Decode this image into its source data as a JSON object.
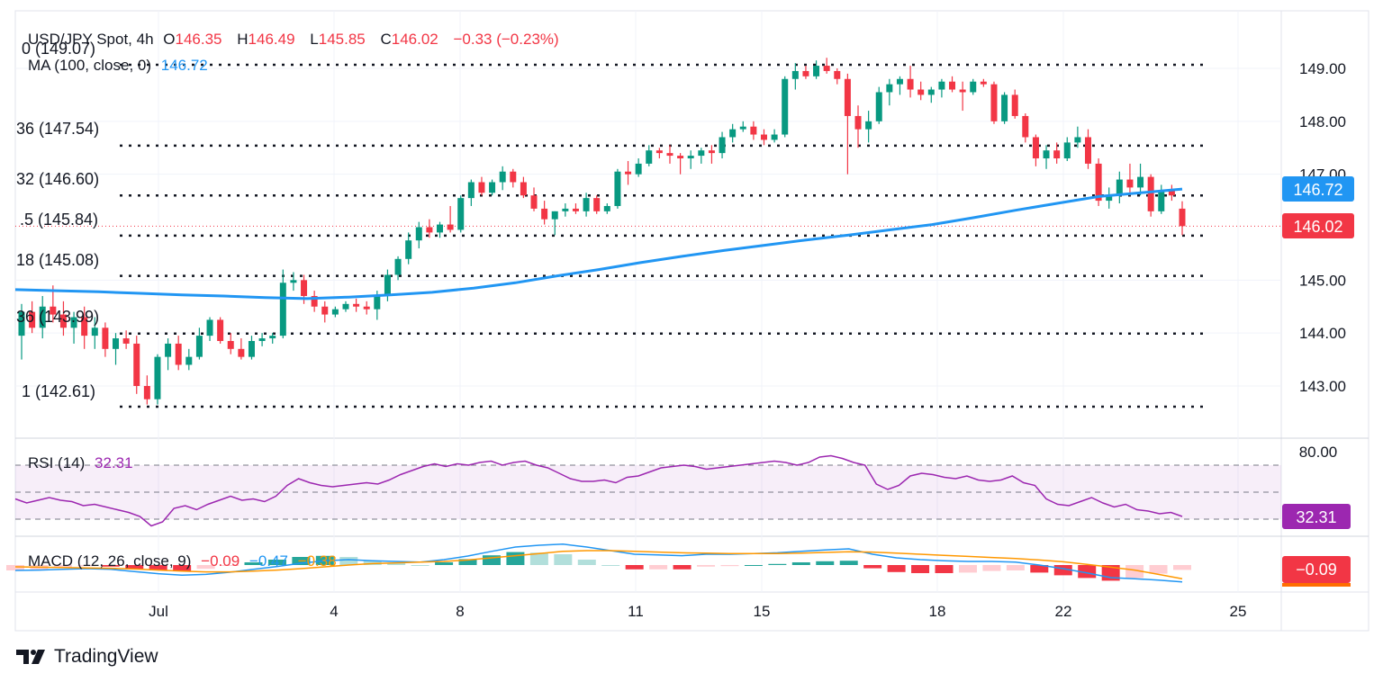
{
  "legend": {
    "symbol": "USD/JPY Spot, 4h",
    "o_label": "O",
    "o_value": "146.35",
    "h_label": "H",
    "h_value": "146.49",
    "l_label": "L",
    "l_value": "145.85",
    "c_label": "C",
    "c_value": "146.02",
    "change": "−0.33 (−0.23%)",
    "ma_label": "MA (100, close, 0)",
    "ma_value": "146.72",
    "rsi_label": "RSI (14)",
    "rsi_value": "32.31",
    "macd_label": "MACD (12, 26, close, 9)",
    "macd_hist": "−0.09",
    "macd_line": "−0.47",
    "macd_signal": "−0.38"
  },
  "fib_labels": [
    {
      "text": "0 (149.07)",
      "price": 149.07
    },
    {
      "text": "36 (147.54)",
      "price": 147.54
    },
    {
      "text": "32 (146.60)",
      "price": 146.6
    },
    {
      "text": ".5 (145.84)",
      "price": 145.84
    },
    {
      "text": "18 (145.08)",
      "price": 145.08
    },
    {
      "text": "36 (143.99)",
      "price": 143.99
    },
    {
      "text": "1 (142.61)",
      "price": 142.61
    }
  ],
  "price_badges": {
    "ma": "146.72",
    "last": "146.02",
    "rsi": "32.31",
    "macd": "−0.09"
  },
  "brand": "TradingView",
  "colors": {
    "up": "#089981",
    "down": "#f23645",
    "ma": "#2196f3",
    "rsi": "#9c27b0",
    "macd_signal": "#ff9800",
    "macd_line": "#2196f3"
  },
  "chart_data": [
    {
      "type": "candlestick",
      "title": "USD/JPY Spot, 4h",
      "yaxis_ticks": [
        "149.00",
        "148.00",
        "147.00",
        "145.00",
        "144.00",
        "143.00"
      ],
      "xaxis_ticks": [
        "Jul",
        "4",
        "8",
        "11",
        "15",
        "18",
        "22",
        "25"
      ],
      "ylim": [
        142.25,
        149.4
      ],
      "fib_levels": [
        149.07,
        147.54,
        146.6,
        145.84,
        145.08,
        143.99,
        142.61
      ],
      "candles": [
        {
          "o": 143.95,
          "h": 144.55,
          "l": 143.5,
          "c": 144.4
        },
        {
          "o": 144.4,
          "h": 144.6,
          "l": 144.0,
          "c": 144.1
        },
        {
          "o": 144.1,
          "h": 144.7,
          "l": 143.9,
          "c": 144.5
        },
        {
          "o": 144.5,
          "h": 144.9,
          "l": 144.2,
          "c": 144.35
        },
        {
          "o": 144.35,
          "h": 144.6,
          "l": 143.95,
          "c": 144.1
        },
        {
          "o": 144.1,
          "h": 144.4,
          "l": 143.8,
          "c": 144.3
        },
        {
          "o": 144.3,
          "h": 144.5,
          "l": 143.7,
          "c": 143.95
        },
        {
          "o": 143.95,
          "h": 144.3,
          "l": 143.7,
          "c": 144.1
        },
        {
          "o": 144.1,
          "h": 144.2,
          "l": 143.55,
          "c": 143.7
        },
        {
          "o": 143.7,
          "h": 144.0,
          "l": 143.4,
          "c": 143.9
        },
        {
          "o": 143.9,
          "h": 144.05,
          "l": 143.7,
          "c": 143.8
        },
        {
          "o": 143.8,
          "h": 143.95,
          "l": 142.85,
          "c": 143.0
        },
        {
          "o": 143.0,
          "h": 143.2,
          "l": 142.65,
          "c": 142.75
        },
        {
          "o": 142.75,
          "h": 143.6,
          "l": 142.65,
          "c": 143.55
        },
        {
          "o": 143.55,
          "h": 143.9,
          "l": 143.3,
          "c": 143.8
        },
        {
          "o": 143.8,
          "h": 143.95,
          "l": 143.3,
          "c": 143.4
        },
        {
          "o": 143.4,
          "h": 143.7,
          "l": 143.3,
          "c": 143.55
        },
        {
          "o": 143.55,
          "h": 144.1,
          "l": 143.5,
          "c": 143.95
        },
        {
          "o": 143.95,
          "h": 144.3,
          "l": 143.85,
          "c": 144.25
        },
        {
          "o": 144.25,
          "h": 144.3,
          "l": 143.8,
          "c": 143.85
        },
        {
          "o": 143.85,
          "h": 144.0,
          "l": 143.6,
          "c": 143.7
        },
        {
          "o": 143.7,
          "h": 143.9,
          "l": 143.5,
          "c": 143.55
        },
        {
          "o": 143.55,
          "h": 143.95,
          "l": 143.5,
          "c": 143.85
        },
        {
          "o": 143.85,
          "h": 144.0,
          "l": 143.75,
          "c": 143.9
        },
        {
          "o": 143.9,
          "h": 144.0,
          "l": 143.8,
          "c": 143.95
        },
        {
          "o": 143.95,
          "h": 145.2,
          "l": 143.9,
          "c": 144.95
        },
        {
          "o": 144.95,
          "h": 145.15,
          "l": 144.8,
          "c": 145.0
        },
        {
          "o": 145.0,
          "h": 145.1,
          "l": 144.55,
          "c": 144.7
        },
        {
          "o": 144.7,
          "h": 144.8,
          "l": 144.4,
          "c": 144.5
        },
        {
          "o": 144.5,
          "h": 144.6,
          "l": 144.2,
          "c": 144.35
        },
        {
          "o": 144.35,
          "h": 144.5,
          "l": 144.3,
          "c": 144.45
        },
        {
          "o": 144.45,
          "h": 144.6,
          "l": 144.4,
          "c": 144.55
        },
        {
          "o": 144.55,
          "h": 144.65,
          "l": 144.4,
          "c": 144.5
        },
        {
          "o": 144.5,
          "h": 144.6,
          "l": 144.35,
          "c": 144.45
        },
        {
          "o": 144.45,
          "h": 144.8,
          "l": 144.25,
          "c": 144.7
        },
        {
          "o": 144.7,
          "h": 145.2,
          "l": 144.6,
          "c": 145.1
        },
        {
          "o": 145.1,
          "h": 145.45,
          "l": 145.0,
          "c": 145.4
        },
        {
          "o": 145.4,
          "h": 145.9,
          "l": 145.3,
          "c": 145.75
        },
        {
          "o": 145.75,
          "h": 146.1,
          "l": 145.6,
          "c": 146.0
        },
        {
          "o": 146.0,
          "h": 146.15,
          "l": 145.8,
          "c": 145.9
        },
        {
          "o": 145.9,
          "h": 146.1,
          "l": 145.8,
          "c": 146.05
        },
        {
          "o": 146.05,
          "h": 146.4,
          "l": 145.9,
          "c": 145.95
        },
        {
          "o": 145.95,
          "h": 146.6,
          "l": 145.9,
          "c": 146.55
        },
        {
          "o": 146.55,
          "h": 146.9,
          "l": 146.4,
          "c": 146.85
        },
        {
          "o": 146.85,
          "h": 146.95,
          "l": 146.6,
          "c": 146.65
        },
        {
          "o": 146.65,
          "h": 146.9,
          "l": 146.6,
          "c": 146.85
        },
        {
          "o": 146.85,
          "h": 147.15,
          "l": 146.7,
          "c": 147.05
        },
        {
          "o": 147.05,
          "h": 147.1,
          "l": 146.75,
          "c": 146.85
        },
        {
          "o": 146.85,
          "h": 146.95,
          "l": 146.55,
          "c": 146.6
        },
        {
          "o": 146.6,
          "h": 146.75,
          "l": 146.3,
          "c": 146.35
        },
        {
          "o": 146.35,
          "h": 146.5,
          "l": 146.05,
          "c": 146.15
        },
        {
          "o": 146.15,
          "h": 146.3,
          "l": 145.85,
          "c": 146.3
        },
        {
          "o": 146.3,
          "h": 146.45,
          "l": 146.2,
          "c": 146.35
        },
        {
          "o": 146.35,
          "h": 146.45,
          "l": 146.25,
          "c": 146.3
        },
        {
          "o": 146.3,
          "h": 146.65,
          "l": 146.2,
          "c": 146.55
        },
        {
          "o": 146.55,
          "h": 146.6,
          "l": 146.25,
          "c": 146.3
        },
        {
          "o": 146.3,
          "h": 146.45,
          "l": 146.25,
          "c": 146.4
        },
        {
          "o": 146.4,
          "h": 147.1,
          "l": 146.35,
          "c": 147.05
        },
        {
          "o": 147.05,
          "h": 147.25,
          "l": 146.8,
          "c": 147.0
        },
        {
          "o": 147.0,
          "h": 147.3,
          "l": 146.95,
          "c": 147.2
        },
        {
          "o": 147.2,
          "h": 147.55,
          "l": 147.15,
          "c": 147.45
        },
        {
          "o": 147.45,
          "h": 147.5,
          "l": 147.3,
          "c": 147.4
        },
        {
          "o": 147.4,
          "h": 147.55,
          "l": 147.2,
          "c": 147.35
        },
        {
          "o": 147.35,
          "h": 147.4,
          "l": 147.0,
          "c": 147.3
        },
        {
          "o": 147.3,
          "h": 147.45,
          "l": 147.1,
          "c": 147.35
        },
        {
          "o": 147.35,
          "h": 147.5,
          "l": 147.2,
          "c": 147.45
        },
        {
          "o": 147.45,
          "h": 147.55,
          "l": 147.2,
          "c": 147.4
        },
        {
          "o": 147.4,
          "h": 147.8,
          "l": 147.3,
          "c": 147.7
        },
        {
          "o": 147.7,
          "h": 147.95,
          "l": 147.6,
          "c": 147.85
        },
        {
          "o": 147.85,
          "h": 148.0,
          "l": 147.8,
          "c": 147.9
        },
        {
          "o": 147.9,
          "h": 148.0,
          "l": 147.65,
          "c": 147.75
        },
        {
          "o": 147.75,
          "h": 147.85,
          "l": 147.55,
          "c": 147.65
        },
        {
          "o": 147.65,
          "h": 147.85,
          "l": 147.6,
          "c": 147.75
        },
        {
          "o": 147.75,
          "h": 148.85,
          "l": 147.7,
          "c": 148.8
        },
        {
          "o": 148.8,
          "h": 149.1,
          "l": 148.6,
          "c": 148.95
        },
        {
          "o": 148.95,
          "h": 149.05,
          "l": 148.8,
          "c": 148.85
        },
        {
          "o": 148.85,
          "h": 149.15,
          "l": 148.8,
          "c": 149.05
        },
        {
          "o": 149.05,
          "h": 149.2,
          "l": 148.9,
          "c": 148.95
        },
        {
          "o": 148.95,
          "h": 149.0,
          "l": 148.7,
          "c": 148.8
        },
        {
          "o": 148.8,
          "h": 148.9,
          "l": 147.0,
          "c": 148.1
        },
        {
          "o": 148.1,
          "h": 148.3,
          "l": 147.5,
          "c": 147.85
        },
        {
          "o": 147.85,
          "h": 148.2,
          "l": 147.6,
          "c": 148.0
        },
        {
          "o": 148.0,
          "h": 148.65,
          "l": 147.95,
          "c": 148.55
        },
        {
          "o": 148.55,
          "h": 148.8,
          "l": 148.3,
          "c": 148.7
        },
        {
          "o": 148.7,
          "h": 148.85,
          "l": 148.5,
          "c": 148.8
        },
        {
          "o": 148.8,
          "h": 149.05,
          "l": 148.45,
          "c": 148.6
        },
        {
          "o": 148.6,
          "h": 148.75,
          "l": 148.4,
          "c": 148.5
        },
        {
          "o": 148.5,
          "h": 148.65,
          "l": 148.35,
          "c": 148.6
        },
        {
          "o": 148.6,
          "h": 148.8,
          "l": 148.45,
          "c": 148.75
        },
        {
          "o": 148.75,
          "h": 148.85,
          "l": 148.55,
          "c": 148.6
        },
        {
          "o": 148.6,
          "h": 148.75,
          "l": 148.2,
          "c": 148.55
        },
        {
          "o": 148.55,
          "h": 148.8,
          "l": 148.5,
          "c": 148.75
        },
        {
          "o": 148.75,
          "h": 148.8,
          "l": 148.65,
          "c": 148.7
        },
        {
          "o": 148.7,
          "h": 148.75,
          "l": 147.95,
          "c": 148.0
        },
        {
          "o": 148.0,
          "h": 148.55,
          "l": 147.95,
          "c": 148.5
        },
        {
          "o": 148.5,
          "h": 148.6,
          "l": 148.05,
          "c": 148.1
        },
        {
          "o": 148.1,
          "h": 148.15,
          "l": 147.6,
          "c": 147.7
        },
        {
          "o": 147.7,
          "h": 147.75,
          "l": 147.15,
          "c": 147.3
        },
        {
          "o": 147.3,
          "h": 147.55,
          "l": 147.1,
          "c": 147.45
        },
        {
          "o": 147.45,
          "h": 147.6,
          "l": 147.2,
          "c": 147.3
        },
        {
          "o": 147.3,
          "h": 147.7,
          "l": 147.25,
          "c": 147.6
        },
        {
          "o": 147.6,
          "h": 147.9,
          "l": 147.5,
          "c": 147.7
        },
        {
          "o": 147.7,
          "h": 147.85,
          "l": 147.1,
          "c": 147.2
        },
        {
          "o": 147.2,
          "h": 147.3,
          "l": 146.4,
          "c": 146.5
        },
        {
          "o": 146.5,
          "h": 146.75,
          "l": 146.35,
          "c": 146.6
        },
        {
          "o": 146.6,
          "h": 147.05,
          "l": 146.45,
          "c": 146.9
        },
        {
          "o": 146.9,
          "h": 147.2,
          "l": 146.6,
          "c": 146.75
        },
        {
          "o": 146.75,
          "h": 147.2,
          "l": 146.6,
          "c": 146.95
        },
        {
          "o": 146.95,
          "h": 147.0,
          "l": 146.2,
          "c": 146.3
        },
        {
          "o": 146.3,
          "h": 146.8,
          "l": 146.25,
          "c": 146.7
        },
        {
          "o": 146.7,
          "h": 146.8,
          "l": 146.5,
          "c": 146.6
        },
        {
          "o": 146.35,
          "h": 146.49,
          "l": 145.85,
          "c": 146.02
        }
      ],
      "ma100": [
        144.82,
        144.8,
        144.78,
        144.75,
        144.72,
        144.7,
        144.67,
        144.65,
        144.68,
        144.72,
        144.77,
        144.85,
        144.95,
        145.08,
        145.2,
        145.33,
        145.45,
        145.56,
        145.66,
        145.76,
        145.85,
        145.95,
        146.05,
        146.18,
        146.32,
        146.45,
        146.58,
        146.65,
        146.72
      ],
      "ma_line_label": "MA (100, close, 0)",
      "last_price": 146.02
    },
    {
      "type": "line",
      "title": "RSI (14)",
      "ylim": [
        20,
        85
      ],
      "yaxis_ticks": [
        "80.00"
      ],
      "levels": [
        70,
        50,
        30
      ],
      "values": [
        45,
        42,
        44,
        46,
        44,
        43,
        40,
        41,
        39,
        37,
        35,
        32,
        25,
        28,
        38,
        40,
        37,
        41,
        44,
        47,
        44,
        45,
        43,
        47,
        55,
        60,
        57,
        55,
        54,
        55,
        56,
        57,
        56,
        59,
        63,
        66,
        69,
        71,
        69,
        71,
        70,
        72,
        73,
        70,
        72,
        73,
        70,
        68,
        64,
        60,
        58,
        58,
        59,
        57,
        61,
        62,
        65,
        68,
        69,
        70,
        69,
        67,
        68,
        69,
        70,
        71,
        72,
        73,
        72,
        70,
        72,
        76,
        77,
        75,
        72,
        70,
        56,
        52,
        55,
        62,
        64,
        63,
        61,
        60,
        62,
        59,
        58,
        59,
        62,
        57,
        55,
        45,
        41,
        40,
        43,
        46,
        42,
        39,
        41,
        37,
        36,
        34,
        35,
        32
      ]
    },
    {
      "type": "line",
      "title": "MACD (12, 26, close, 9)",
      "series": [
        {
          "name": "MACD",
          "values": [
            -0.15,
            -0.14,
            -0.12,
            -0.1,
            -0.12,
            -0.18,
            -0.24,
            -0.28,
            -0.26,
            -0.2,
            -0.12,
            -0.04,
            0.05,
            0.12,
            0.15,
            0.12,
            0.1,
            0.08,
            0.15,
            0.25,
            0.38,
            0.5,
            0.55,
            0.58,
            0.5,
            0.4,
            0.3,
            0.28,
            0.26,
            0.3,
            0.3,
            0.32,
            0.34,
            0.38,
            0.42,
            0.45,
            0.3,
            0.2,
            0.15,
            0.12,
            0.1,
            0.1,
            0.08,
            0.0,
            -0.1,
            -0.22,
            -0.35,
            -0.38,
            -0.42,
            -0.47
          ]
        },
        {
          "name": "Signal",
          "values": [
            -0.05,
            -0.06,
            -0.07,
            -0.08,
            -0.09,
            -0.11,
            -0.14,
            -0.17,
            -0.19,
            -0.19,
            -0.17,
            -0.14,
            -0.1,
            -0.05,
            0.0,
            0.04,
            0.06,
            0.08,
            0.1,
            0.14,
            0.2,
            0.26,
            0.32,
            0.38,
            0.4,
            0.4,
            0.38,
            0.36,
            0.34,
            0.33,
            0.32,
            0.32,
            0.32,
            0.33,
            0.35,
            0.37,
            0.36,
            0.33,
            0.3,
            0.27,
            0.24,
            0.21,
            0.18,
            0.14,
            0.09,
            0.02,
            -0.06,
            -0.14,
            -0.26,
            -0.38
          ]
        }
      ]
    }
  ]
}
